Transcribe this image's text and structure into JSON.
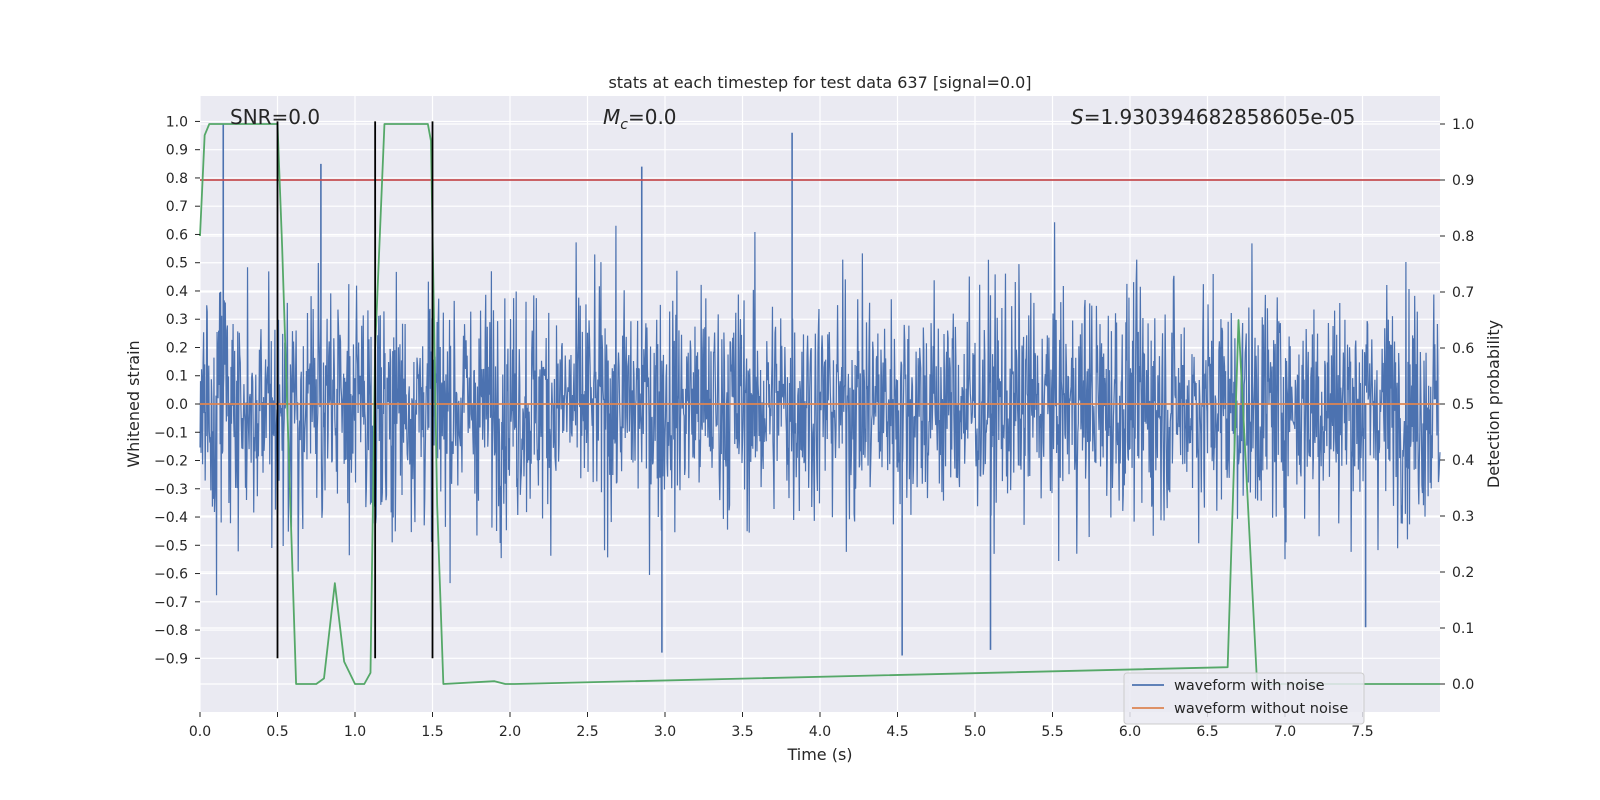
{
  "chart_data": {
    "type": "line",
    "title": "stats at each timestep for test data 637 [signal=0.0]",
    "xlabel": "Time (s)",
    "ylabel": "Whitened strain",
    "y2label": "Detection probability",
    "xlim": [
      0.0,
      8.0
    ],
    "ylim": [
      -1.09,
      1.09
    ],
    "y2lim": [
      -0.05,
      1.05
    ],
    "xticks": [
      0.0,
      0.5,
      1.0,
      1.5,
      2.0,
      2.5,
      3.0,
      3.5,
      4.0,
      4.5,
      5.0,
      5.5,
      6.0,
      6.5,
      7.0,
      7.5
    ],
    "xtick_labels": [
      "0.0",
      "0.5",
      "1.0",
      "1.5",
      "2.0",
      "2.5",
      "3.0",
      "3.5",
      "4.0",
      "4.5",
      "5.0",
      "5.5",
      "6.0",
      "6.5",
      "7.0",
      "7.5"
    ],
    "yticks": [
      1.0,
      0.9,
      0.8,
      0.7,
      0.6,
      0.5,
      0.4,
      0.3,
      0.2,
      0.1,
      0.0,
      -0.1,
      -0.2,
      -0.3,
      -0.4,
      -0.5,
      -0.6,
      -0.7,
      -0.8,
      -0.9
    ],
    "ytick_labels": [
      "1.0",
      "0.9",
      "0.8",
      "0.7",
      "0.6",
      "0.5",
      "0.4",
      "0.3",
      "0.2",
      "0.1",
      "0.0",
      "−0.1",
      "−0.2",
      "−0.3",
      "−0.4",
      "−0.5",
      "−0.6",
      "−0.7",
      "−0.8",
      "−0.9"
    ],
    "y2ticks": [
      1.0,
      0.9,
      0.8,
      0.7,
      0.6,
      0.5,
      0.4,
      0.3,
      0.2,
      0.1,
      0.0
    ],
    "y2tick_labels": [
      "1.0",
      "0.9",
      "0.8",
      "0.7",
      "0.6",
      "0.5",
      "0.4",
      "0.3",
      "0.2",
      "0.1",
      "0.0"
    ],
    "grid": true,
    "annotations": {
      "snr": "SNR=0.0",
      "mc_symbol": "M",
      "mc_sub": "c",
      "mc_value": "=0.0",
      "s_symbol": "S",
      "s_value": "=1.930394682858605e-05"
    },
    "legend": {
      "placement": "lower-right",
      "entries": [
        "waveform with noise",
        "waveform without noise"
      ]
    },
    "series": [
      {
        "name": "waveform with noise",
        "color": "#4c72b0",
        "kind": "dense-noise",
        "duration": 8.0,
        "typical_envelope": [
          -0.62,
          0.62
        ],
        "peak_spikes": [
          {
            "x": 0.15,
            "y": 0.99
          },
          {
            "x": 0.78,
            "y": 0.85
          },
          {
            "x": 2.85,
            "y": 0.84
          },
          {
            "x": 3.82,
            "y": 0.96
          },
          {
            "x": 2.98,
            "y": -0.88
          },
          {
            "x": 4.53,
            "y": -0.89
          },
          {
            "x": 5.1,
            "y": -0.87
          },
          {
            "x": 7.52,
            "y": -0.79
          }
        ]
      },
      {
        "name": "waveform without noise",
        "color": "#dd8452",
        "x": [
          0.0,
          8.0
        ],
        "y": [
          0.0,
          0.0
        ]
      },
      {
        "name": "detection probability",
        "axis": "right",
        "color": "#55a868",
        "x": [
          0.0,
          0.03,
          0.06,
          0.13,
          0.5,
          0.53,
          0.62,
          0.75,
          0.8,
          0.87,
          0.93,
          1.0,
          1.06,
          1.1,
          1.13,
          1.19,
          1.47,
          1.49,
          1.53,
          1.57,
          1.9,
          1.97,
          2.03,
          6.63,
          6.7,
          6.82,
          8.0
        ],
        "y": [
          0.8,
          0.98,
          1.0,
          1.0,
          1.0,
          0.78,
          0.0,
          0.0,
          0.01,
          0.18,
          0.04,
          0.0,
          0.0,
          0.02,
          0.6,
          1.0,
          1.0,
          0.97,
          0.32,
          0.0,
          0.005,
          0.0,
          0.0,
          0.03,
          0.65,
          0.0,
          0.0
        ]
      },
      {
        "name": "threshold",
        "axis": "right",
        "color": "#c44e52",
        "x": [
          0.0,
          8.0
        ],
        "y": [
          0.9,
          0.9
        ]
      }
    ],
    "vlines": [
      {
        "x": 0.5,
        "ymin": -0.9,
        "ymax": 1.0,
        "color": "#000000"
      },
      {
        "x": 1.13,
        "ymin": -0.9,
        "ymax": 1.0,
        "color": "#000000"
      },
      {
        "x": 1.5,
        "ymin": -0.9,
        "ymax": 1.0,
        "color": "#000000"
      }
    ],
    "colors": {
      "plot_background": "#eaeaf2",
      "grid": "#ffffff",
      "text": "#262626"
    }
  }
}
